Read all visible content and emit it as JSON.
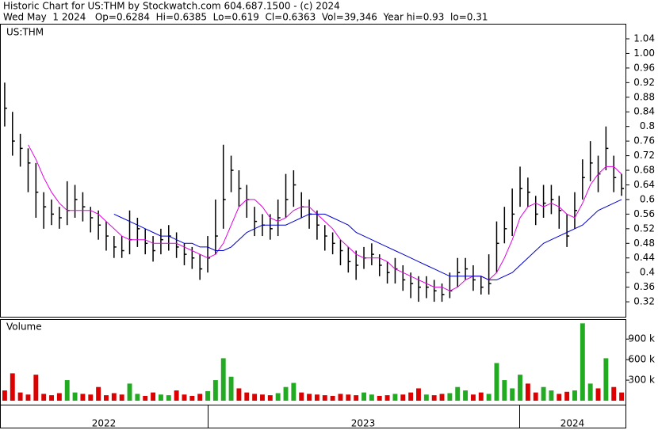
{
  "header": {
    "title": "Historic Chart for US:THM by Stockwatch.com 604.687.1500 - (c) 2024",
    "quote": "Wed May  1 2024   Op=0.6284  Hi=0.6385  Lo=0.619  Cl=0.6363  Vol=39,346  Year hi=0.93  lo=0.31"
  },
  "x_axis_labels": [
    "2022",
    "2023",
    "2024"
  ],
  "chart_data": [
    {
      "type": "ohlc",
      "label": "US:THM",
      "bar_color": "#000000",
      "high": [
        0.92,
        0.84,
        0.78,
        0.74,
        0.7,
        0.62,
        0.6,
        0.58,
        0.65,
        0.64,
        0.62,
        0.58,
        0.57,
        0.54,
        0.5,
        0.5,
        0.57,
        0.55,
        0.52,
        0.5,
        0.52,
        0.53,
        0.51,
        0.48,
        0.47,
        0.45,
        0.5,
        0.6,
        0.75,
        0.72,
        0.68,
        0.64,
        0.58,
        0.56,
        0.56,
        0.6,
        0.67,
        0.68,
        0.62,
        0.6,
        0.57,
        0.53,
        0.51,
        0.49,
        0.47,
        0.46,
        0.47,
        0.48,
        0.45,
        0.43,
        0.44,
        0.42,
        0.4,
        0.39,
        0.39,
        0.38,
        0.37,
        0.4,
        0.44,
        0.44,
        0.42,
        0.39,
        0.45,
        0.54,
        0.58,
        0.63,
        0.69,
        0.66,
        0.61,
        0.64,
        0.64,
        0.61,
        0.56,
        0.62,
        0.71,
        0.76,
        0.72,
        0.8,
        0.72,
        0.67
      ],
      "low": [
        0.8,
        0.72,
        0.69,
        0.62,
        0.55,
        0.52,
        0.53,
        0.52,
        0.53,
        0.55,
        0.54,
        0.51,
        0.49,
        0.46,
        0.44,
        0.44,
        0.45,
        0.47,
        0.45,
        0.43,
        0.45,
        0.46,
        0.44,
        0.42,
        0.41,
        0.38,
        0.4,
        0.45,
        0.52,
        0.62,
        0.58,
        0.55,
        0.5,
        0.5,
        0.49,
        0.5,
        0.55,
        0.58,
        0.55,
        0.52,
        0.49,
        0.46,
        0.45,
        0.42,
        0.4,
        0.38,
        0.41,
        0.42,
        0.39,
        0.37,
        0.37,
        0.35,
        0.33,
        0.32,
        0.33,
        0.32,
        0.32,
        0.33,
        0.36,
        0.38,
        0.35,
        0.34,
        0.34,
        0.4,
        0.48,
        0.5,
        0.58,
        0.58,
        0.53,
        0.55,
        0.56,
        0.52,
        0.47,
        0.52,
        0.6,
        0.65,
        0.62,
        0.68,
        0.62,
        0.61
      ],
      "close": [
        0.85,
        0.76,
        0.74,
        0.7,
        0.62,
        0.58,
        0.56,
        0.55,
        0.57,
        0.6,
        0.58,
        0.55,
        0.53,
        0.5,
        0.47,
        0.46,
        0.49,
        0.52,
        0.48,
        0.46,
        0.49,
        0.5,
        0.47,
        0.45,
        0.44,
        0.41,
        0.44,
        0.5,
        0.6,
        0.68,
        0.63,
        0.6,
        0.54,
        0.53,
        0.52,
        0.55,
        0.6,
        0.64,
        0.58,
        0.56,
        0.53,
        0.5,
        0.48,
        0.46,
        0.43,
        0.42,
        0.44,
        0.45,
        0.42,
        0.4,
        0.41,
        0.38,
        0.37,
        0.36,
        0.36,
        0.35,
        0.34,
        0.35,
        0.4,
        0.41,
        0.38,
        0.36,
        0.37,
        0.48,
        0.52,
        0.56,
        0.63,
        0.62,
        0.56,
        0.59,
        0.6,
        0.57,
        0.5,
        0.57,
        0.66,
        0.7,
        0.67,
        0.74,
        0.66,
        0.63
      ],
      "series": [
        {
          "color": "#e000e0",
          "values": [
            null,
            null,
            null,
            0.75,
            0.71,
            0.66,
            0.62,
            0.59,
            0.57,
            0.57,
            0.57,
            0.57,
            0.56,
            0.54,
            0.52,
            0.5,
            0.49,
            0.49,
            0.49,
            0.48,
            0.48,
            0.48,
            0.48,
            0.47,
            0.46,
            0.45,
            0.44,
            0.45,
            0.48,
            0.53,
            0.58,
            0.6,
            0.6,
            0.58,
            0.55,
            0.54,
            0.55,
            0.57,
            0.58,
            0.58,
            0.56,
            0.54,
            0.52,
            0.49,
            0.47,
            0.45,
            0.44,
            0.44,
            0.44,
            0.43,
            0.41,
            0.4,
            0.39,
            0.38,
            0.37,
            0.36,
            0.36,
            0.35,
            0.36,
            0.38,
            0.39,
            0.39,
            0.38,
            0.4,
            0.44,
            0.49,
            0.55,
            0.58,
            0.59,
            0.58,
            0.59,
            0.58,
            0.56,
            0.55,
            0.59,
            0.64,
            0.67,
            0.69,
            0.69,
            0.67
          ]
        },
        {
          "color": "#0000cc",
          "values": [
            null,
            null,
            null,
            null,
            null,
            null,
            null,
            null,
            null,
            null,
            null,
            null,
            null,
            null,
            0.56,
            0.55,
            0.54,
            0.53,
            0.52,
            0.51,
            0.5,
            0.5,
            0.49,
            0.48,
            0.48,
            0.47,
            0.47,
            0.46,
            0.46,
            0.47,
            0.49,
            0.51,
            0.52,
            0.53,
            0.53,
            0.53,
            0.53,
            0.54,
            0.55,
            0.56,
            0.56,
            0.56,
            0.55,
            0.54,
            0.53,
            0.51,
            0.5,
            0.49,
            0.48,
            0.47,
            0.46,
            0.45,
            0.44,
            0.43,
            0.42,
            0.41,
            0.4,
            0.39,
            0.39,
            0.39,
            0.39,
            0.39,
            0.38,
            0.38,
            0.39,
            0.4,
            0.42,
            0.44,
            0.46,
            0.48,
            0.49,
            0.5,
            0.51,
            0.52,
            0.53,
            0.55,
            0.57,
            0.58,
            0.59,
            0.6
          ]
        }
      ],
      "ylim": [
        0.279,
        1.079
      ],
      "yticks": [
        0.32,
        0.36,
        0.4,
        0.44,
        0.48,
        0.52,
        0.56,
        0.6,
        0.64,
        0.68,
        0.72,
        0.76,
        0.8,
        0.84,
        0.88,
        0.92,
        0.96,
        {
          "value": 1.0,
          "label": "1.00"
        },
        1.04
      ]
    },
    {
      "type": "bar",
      "label": "Volume",
      "up_color": "#22aa22",
      "down_color": "#dd0000",
      "values": [
        150000,
        400000,
        120000,
        90000,
        380000,
        100000,
        80000,
        110000,
        300000,
        120000,
        100000,
        90000,
        200000,
        80000,
        110000,
        90000,
        250000,
        100000,
        70000,
        120000,
        90000,
        80000,
        150000,
        90000,
        70000,
        100000,
        140000,
        300000,
        620000,
        350000,
        180000,
        120000,
        100000,
        90000,
        80000,
        110000,
        200000,
        260000,
        120000,
        100000,
        90000,
        80000,
        70000,
        100000,
        90000,
        80000,
        120000,
        90000,
        70000,
        80000,
        100000,
        90000,
        120000,
        180000,
        90000,
        80000,
        100000,
        110000,
        200000,
        150000,
        90000,
        120000,
        100000,
        550000,
        300000,
        180000,
        380000,
        250000,
        120000,
        200000,
        150000,
        100000,
        130000,
        150000,
        1130000,
        250000,
        180000,
        620000,
        200000,
        120000
      ],
      "ylim": [
        0,
        1180000
      ],
      "yticks": [
        {
          "value": 300000,
          "label": "300 k"
        },
        {
          "value": 600000,
          "label": "600 k"
        },
        {
          "value": 900000,
          "label": "900 k"
        }
      ]
    }
  ]
}
